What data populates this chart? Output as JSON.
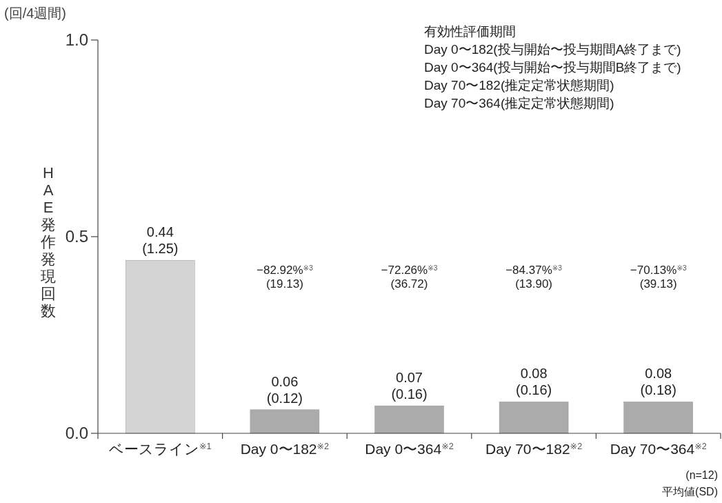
{
  "chart_data": {
    "type": "bar",
    "ylabel": "HAE発作発現回数",
    "categories": [
      "ベースライン$^{※1}$",
      "Day 0〜182$^{※2}$",
      "Day 0〜364$^{※2}$",
      "Day 70〜182$^{※2}$",
      "Day 70〜364$^{※2}$"
    ],
    "values": [
      0.44,
      0.06,
      0.07,
      0.08,
      0.08
    ],
    "colors": [
      "#d4d4d4",
      "#ababab",
      "#ababab",
      "#ababab",
      "#ababab"
    ],
    "value_labels": [
      "0.44\n(1.25)",
      "0.06\n(0.12)",
      "0.07\n(0.16)",
      "0.08\n(0.16)",
      "0.08\n(0.18)"
    ],
    "ylim": [
      0,
      1
    ],
    "yticks": [
      {
        "value": 0,
        "label": "0.0"
      },
      {
        "value": 0.5,
        "label": "0.5"
      },
      {
        "value": 1,
        "label": "1.0"
      }
    ],
    "grid": false,
    "annotations": [
      "(回/4週間)",
      "有効性評価期間",
      "Day 0〜182(投与開始〜投与期間A終了まで)",
      "Day 0〜364(投与開始〜投与期間B終了まで)",
      "Day 70〜182(推定定常状態期間)",
      "Day 70〜364(推定定常状態期間)",
      "−82.92%$^{※3}$\n(19.13)",
      "−72.26%$^{※3}$\n(36.72)",
      "−84.37%$^{※3}$\n(13.90)",
      "−70.13%$^{※3}$\n(39.13)",
      "(n=12)",
      "平均値(SD)"
    ]
  }
}
